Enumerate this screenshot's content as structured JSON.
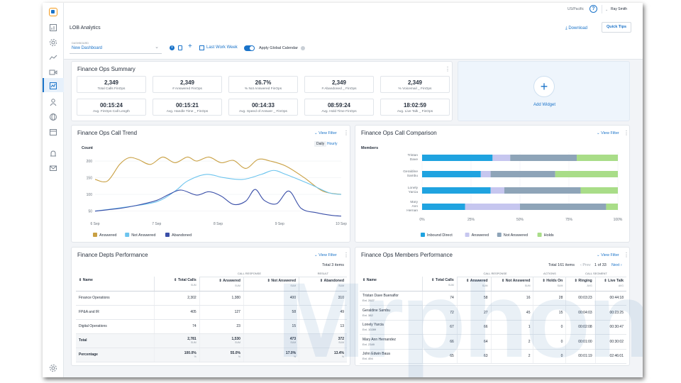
{
  "app": {
    "title": "LOB Analytics",
    "timezone": "US/Pacific",
    "user": "Ray Smith",
    "download": "Download",
    "quick_tips": "Quick Tips",
    "help_glyph": "?"
  },
  "dashboard": {
    "label": "DASHBOARD",
    "name": "New Dashboard",
    "range": "Last Work Week",
    "global_calendar": "Apply Global Calendar",
    "add_glyph": "+"
  },
  "sidebar": {
    "icons": [
      "dashboard-icon",
      "settings-icon",
      "trend-icon",
      "video-icon",
      "analytics-icon",
      "users-icon",
      "globe-icon",
      "calendar-icon",
      "bell-icon",
      "mail-icon",
      "gear-icon"
    ]
  },
  "summary": {
    "title": "Finance Ops Summary",
    "stats": [
      {
        "value": "2,349",
        "label": "Total Calls FinOps"
      },
      {
        "value": "2,349",
        "label": "# Answered FinOps"
      },
      {
        "value": "26.7%",
        "label": "% Not Answered FinOps"
      },
      {
        "value": "2,349",
        "label": "# Abandoned _ FinOps"
      },
      {
        "value": "2,349",
        "label": "% Voicemail _ FinOps"
      },
      {
        "value": "00:15:24",
        "label": "Avg. FinOps Call Length"
      },
      {
        "value": "00:15:21",
        "label": "Avg. Handle Time _ FinOps"
      },
      {
        "value": "00:14:33",
        "label": "Avg. Speed of Answer _ FinOps"
      },
      {
        "value": "08:59:24",
        "label": "Avg. Hold Time FinOps"
      },
      {
        "value": "18:02:59",
        "label": "Avg. Live Talk _ FinOps"
      }
    ]
  },
  "add_widget": {
    "label": "Add Widget",
    "plus": "+"
  },
  "view_filter": "View Filter",
  "trend": {
    "title": "Finance Ops Call Trend",
    "tab_daily": "Daily",
    "tab_hourly": "Hourly"
  },
  "comparison": {
    "title": "Finance Ops Call Comparison"
  },
  "chart_data": [
    {
      "type": "line",
      "title": "Finance Ops Call Trend",
      "ylabel": "Count",
      "ylim": [
        30,
        230
      ],
      "yticks": [
        50,
        100,
        150,
        200
      ],
      "x": [
        "6 Sep",
        "7 Sep",
        "8 Sep",
        "9 Sep",
        "10 Sep"
      ],
      "xpos": [
        0,
        1,
        2,
        3,
        4
      ],
      "series": [
        {
          "name": "Answered",
          "color": "#c9a043",
          "points": [
            [
              0,
              145
            ],
            [
              0.2,
              140
            ],
            [
              0.4,
              190
            ],
            [
              0.55,
              210
            ],
            [
              0.7,
              205
            ],
            [
              0.9,
              190
            ],
            [
              1.1,
              212
            ],
            [
              1.3,
              195
            ],
            [
              1.5,
              212
            ],
            [
              1.65,
              200
            ],
            [
              1.85,
              212
            ],
            [
              2.05,
              195
            ],
            [
              2.25,
              202
            ],
            [
              2.45,
              178
            ],
            [
              2.65,
              205
            ],
            [
              2.85,
              200
            ],
            [
              3.1,
              185
            ],
            [
              3.4,
              150
            ],
            [
              3.7,
              110
            ],
            [
              4,
              100
            ]
          ]
        },
        {
          "name": "Not Answered",
          "color": "#6cc4ee",
          "points": [
            [
              0,
              50
            ],
            [
              0.5,
              62
            ],
            [
              1,
              78
            ],
            [
              1.3,
              110
            ],
            [
              1.5,
              140
            ],
            [
              1.8,
              160
            ],
            [
              2.1,
              150
            ],
            [
              2.4,
              145
            ],
            [
              2.7,
              160
            ],
            [
              2.9,
              172
            ],
            [
              3.1,
              160
            ],
            [
              3.5,
              130
            ],
            [
              3.8,
              105
            ],
            [
              4,
              100
            ]
          ]
        },
        {
          "name": "Abandoned",
          "color": "#3a4fa8",
          "points": [
            [
              0,
              50
            ],
            [
              0.4,
              58
            ],
            [
              0.7,
              68
            ],
            [
              1,
              82
            ],
            [
              1.2,
              100
            ],
            [
              1.4,
              113
            ],
            [
              1.65,
              98
            ],
            [
              1.85,
              108
            ],
            [
              2.05,
              95
            ],
            [
              2.25,
              70
            ],
            [
              2.45,
              80
            ],
            [
              2.6,
              115
            ],
            [
              2.75,
              82
            ],
            [
              2.95,
              72
            ],
            [
              3.15,
              110
            ],
            [
              3.35,
              58
            ],
            [
              3.6,
              45
            ],
            [
              3.85,
              37
            ],
            [
              4,
              35
            ]
          ]
        }
      ]
    },
    {
      "type": "bar",
      "stacked": true,
      "horizontal": true,
      "title": "Finance Ops Call Comparison",
      "ylabel": "Members",
      "categories": [
        "Tristan Dave",
        "Geraldine Sambu",
        "Lonely Yarcia",
        "Mary Ann Hernan"
      ],
      "xticks": [
        "0%",
        "25%",
        "50%",
        "75%",
        "100%"
      ],
      "series": [
        {
          "name": "Inbound Direct",
          "color": "#1fa3e0",
          "values": [
            36,
            30,
            35,
            22
          ]
        },
        {
          "name": "Answered",
          "color": "#c6c6ef",
          "values": [
            9,
            5,
            7,
            28
          ]
        },
        {
          "name": "Not Answered",
          "color": "#8ea4b8",
          "values": [
            34,
            33,
            39,
            44
          ]
        },
        {
          "name": "Holds",
          "color": "#a9dd88",
          "values": [
            21,
            32,
            19,
            6
          ]
        }
      ]
    }
  ],
  "depts": {
    "title": "Finance Depts Performance",
    "total_items": "Total 3 items",
    "group_call_response": "CALL RESPONSE",
    "group_result": "RESULT",
    "headers": [
      "Name",
      "Total Calls",
      "Answered",
      "Not Answered",
      "Abandoned"
    ],
    "sum": "SUM",
    "rows": [
      {
        "name": "Finance Operations",
        "total": "2,302",
        "answered": "1,380",
        "not_answered": "400",
        "abandoned": "310"
      },
      {
        "name": "FP&A and IR",
        "total": "405",
        "answered": "127",
        "not_answered": "58",
        "abandoned": "49"
      },
      {
        "name": "Digital Operations",
        "total": "74",
        "answered": "23",
        "not_answered": "15",
        "abandoned": "13"
      }
    ],
    "total": {
      "label": "Total",
      "total": "2,781",
      "answered": "1,530",
      "not_answered": "473",
      "abandoned": "372"
    },
    "percentage": {
      "label": "Percentage",
      "total": "100.0%",
      "answered": "55.0%",
      "not_answered": "17.0%",
      "abandoned": "13.4%"
    },
    "pct_unit": "%"
  },
  "members": {
    "title": "Finance Ops Members Performance",
    "total_items": "Total 161 items",
    "prev": "‹ Prev",
    "page": "1 of 33",
    "next": "Next ›",
    "group_call_response": "CALL RESPONSE",
    "group_actions": "ACTIONS",
    "group_call_segment": "CALL SEGMENT",
    "headers": [
      "Name",
      "Total Calls",
      "Answered",
      "Not Answered",
      "Holds On",
      "Ringing",
      "Live Talk"
    ],
    "sum": "SUM",
    "avg": "AVG",
    "rows": [
      {
        "name": "Tristan Dave Buenaflor",
        "ext": "Ext. 2927",
        "total": "74",
        "answered": "58",
        "not_answered": "16",
        "holds": "28",
        "ringing": "00:03:23",
        "live": "00:44:18"
      },
      {
        "name": "Geraldine Sambu",
        "ext": "Ext. 382",
        "total": "72",
        "answered": "27",
        "not_answered": "45",
        "holds": "15",
        "ringing": "00:04:03",
        "live": "00:23:25"
      },
      {
        "name": "Lonely Yarcia",
        "ext": "Ext. 10289",
        "total": "67",
        "answered": "66",
        "not_answered": "1",
        "holds": "0",
        "ringing": "00:02:08",
        "live": "00:30:47"
      },
      {
        "name": "Mary Ann Hernandez",
        "ext": "Ext. 2349",
        "total": "66",
        "answered": "64",
        "not_answered": "2",
        "holds": "0",
        "ringing": "00:01:00",
        "live": "00:30:02"
      },
      {
        "name": "John Edwin Baua",
        "ext": "Ext. 494",
        "total": "65",
        "answered": "63",
        "not_answered": "2",
        "holds": "0",
        "ringing": "00:01:19",
        "live": "02:46:01"
      }
    ]
  },
  "watermark": "Mrphone"
}
